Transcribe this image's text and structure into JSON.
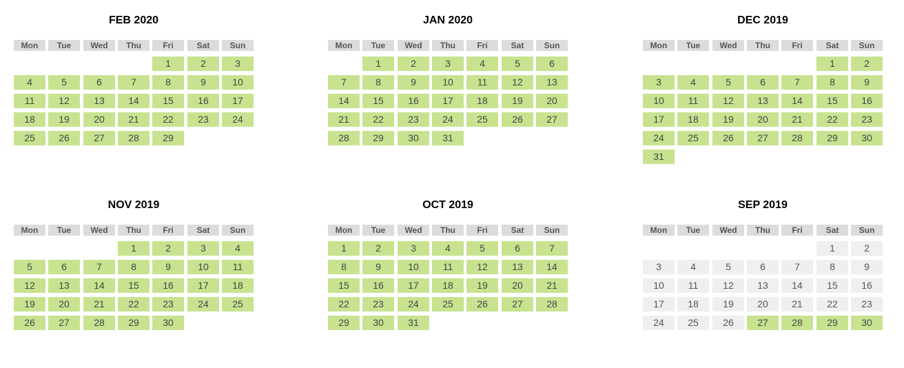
{
  "colors": {
    "available": "#c8e390",
    "unavailable": "#efefef",
    "header": "#dcdcdc"
  },
  "weekdays": [
    "Mon",
    "Tue",
    "Wed",
    "Thu",
    "Fri",
    "Sat",
    "Sun"
  ],
  "months": [
    {
      "title": "FEB 2020",
      "first_weekday": 5,
      "days": 29,
      "available_from": 1
    },
    {
      "title": "JAN 2020",
      "first_weekday": 2,
      "days": 31,
      "available_from": 1
    },
    {
      "title": "DEC 2019",
      "first_weekday": 6,
      "days": 31,
      "available_from": 1
    },
    {
      "title": "NOV 2019",
      "first_weekday": 4,
      "days": 30,
      "available_from": 1
    },
    {
      "title": "OCT 2019",
      "first_weekday": 1,
      "days": 31,
      "available_from": 1
    },
    {
      "title": "SEP 2019",
      "first_weekday": 6,
      "days": 30,
      "available_from": 27
    }
  ]
}
